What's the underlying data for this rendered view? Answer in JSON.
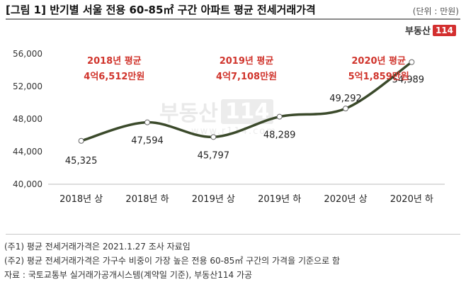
{
  "header": {
    "title": "[그림 1] 반기별 서울 전용 60-85㎡ 구간 아파트 평균 전세거래가격",
    "unit": "(단위 : 만원)"
  },
  "brand": {
    "logo_text": "부동산",
    "logo_number": "114",
    "watermark_url": "www.r114.com"
  },
  "chart_data": {
    "type": "line",
    "categories": [
      "2018년 상",
      "2018년 하",
      "2019년 상",
      "2019년 하",
      "2020년 상",
      "2020년 하"
    ],
    "values": [
      45325,
      47594,
      45797,
      48289,
      49292,
      54989
    ],
    "value_labels": [
      "45,325",
      "47,594",
      "45,797",
      "48,289",
      "49,292",
      "54,989"
    ],
    "ylim": [
      40000,
      56000
    ],
    "yticks": [
      40000,
      44000,
      48000,
      52000,
      56000
    ],
    "ytick_labels": [
      "40,000",
      "44,000",
      "48,000",
      "52,000",
      "56,000"
    ],
    "title": "",
    "xlabel": "",
    "ylabel": "",
    "grid": false,
    "line_color": "#3b4a2b",
    "marker_color": "#ffffff",
    "annotations": [
      {
        "year": "2018년 평균",
        "value": "4억6,512만원"
      },
      {
        "year": "2019년 평균",
        "value": "4억7,108만원"
      },
      {
        "year": "2020년 평균",
        "value": "5억1,859만원"
      }
    ],
    "annotation_color": "#d0342c"
  },
  "notes": [
    "(주1) 평균 전세거래가격은 2021.1.27 조사 자료임",
    "(주2) 평균 전세거래가격은 가구수 비중이 가장 높은 전용 60-85㎡ 구간의 가격을 기준으로 함",
    "자료 : 국토교통부 실거래가공개시스템(계약일 기준), 부동산114 가공"
  ]
}
